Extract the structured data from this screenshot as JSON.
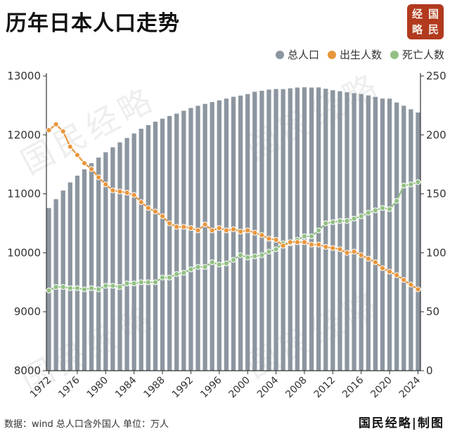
{
  "title": "历年日本人口走势",
  "brand_seal": [
    "经",
    "国",
    "略",
    "民"
  ],
  "source_note": "数据：wind 总人口含外国人  单位：万人",
  "brand_footer": "国民经略|制图",
  "watermark_text": "国民经略",
  "colors": {
    "population": "#8c96a0",
    "births": "#e8963c",
    "deaths": "#92c084",
    "seal": "#b23a1e"
  },
  "chart_data": {
    "type": "bar+line",
    "years": [
      1972,
      1973,
      1974,
      1975,
      1976,
      1977,
      1978,
      1979,
      1980,
      1981,
      1982,
      1983,
      1984,
      1985,
      1986,
      1987,
      1988,
      1989,
      1990,
      1991,
      1992,
      1993,
      1994,
      1995,
      1996,
      1997,
      1998,
      1999,
      2000,
      2001,
      2002,
      2003,
      2004,
      2005,
      2006,
      2007,
      2008,
      2009,
      2010,
      2011,
      2012,
      2013,
      2014,
      2015,
      2016,
      2017,
      2018,
      2019,
      2020,
      2021,
      2022,
      2023,
      2024
    ],
    "x_tick_labels": [
      "1972",
      "1976",
      "1980",
      "1984",
      "1988",
      "1992",
      "1996",
      "2000",
      "2004",
      "2008",
      "2012",
      "2016",
      "2020",
      "2024"
    ],
    "legend_position": "top-right",
    "grid": false,
    "left_axis": {
      "ylim": [
        8000,
        13000
      ],
      "ticks": [
        "8000",
        "9000",
        "10000",
        "11000",
        "12000",
        "13000"
      ]
    },
    "right_axis": {
      "ylim": [
        0,
        250
      ],
      "ticks": [
        "0",
        "50",
        "100",
        "150",
        "200",
        "250"
      ]
    },
    "series": [
      {
        "name": "总人口",
        "kind": "bar",
        "axis": "left",
        "values": [
          10760,
          10910,
          11057,
          11194,
          11309,
          11417,
          11519,
          11616,
          11706,
          11790,
          11873,
          11948,
          12024,
          12105,
          12166,
          12224,
          12275,
          12321,
          12361,
          12410,
          12457,
          12494,
          12526,
          12557,
          12586,
          12616,
          12647,
          12667,
          12693,
          12732,
          12749,
          12769,
          12779,
          12777,
          12790,
          12803,
          12808,
          12803,
          12806,
          12783,
          12759,
          12741,
          12724,
          12709,
          12693,
          12671,
          12644,
          12617,
          12615,
          12550,
          12495,
          12435,
          12380
        ]
      },
      {
        "name": "出生人数",
        "kind": "line",
        "axis": "right",
        "values": [
          204,
          209,
          203,
          190,
          183,
          176,
          171,
          164,
          158,
          153,
          152,
          151,
          149,
          143,
          138,
          135,
          131,
          125,
          122,
          122,
          121,
          119,
          124,
          119,
          121,
          119,
          120,
          118,
          119,
          117,
          115,
          112,
          111,
          106,
          109,
          109,
          109,
          107,
          107,
          105,
          104,
          103,
          100,
          101,
          98,
          95,
          92,
          87,
          84,
          81,
          77,
          73,
          69
        ]
      },
      {
        "name": "死亡人数",
        "kind": "line",
        "axis": "right",
        "values": [
          68,
          71,
          71,
          70,
          70,
          69,
          70,
          69,
          72,
          72,
          71,
          74,
          74,
          75,
          75,
          75,
          79,
          79,
          82,
          83,
          86,
          88,
          88,
          92,
          90,
          91,
          94,
          98,
          96,
          97,
          98,
          101,
          103,
          108,
          108,
          111,
          114,
          114,
          119,
          125,
          126,
          127,
          127,
          129,
          131,
          134,
          136,
          138,
          137,
          144,
          157,
          158,
          160
        ]
      }
    ]
  }
}
